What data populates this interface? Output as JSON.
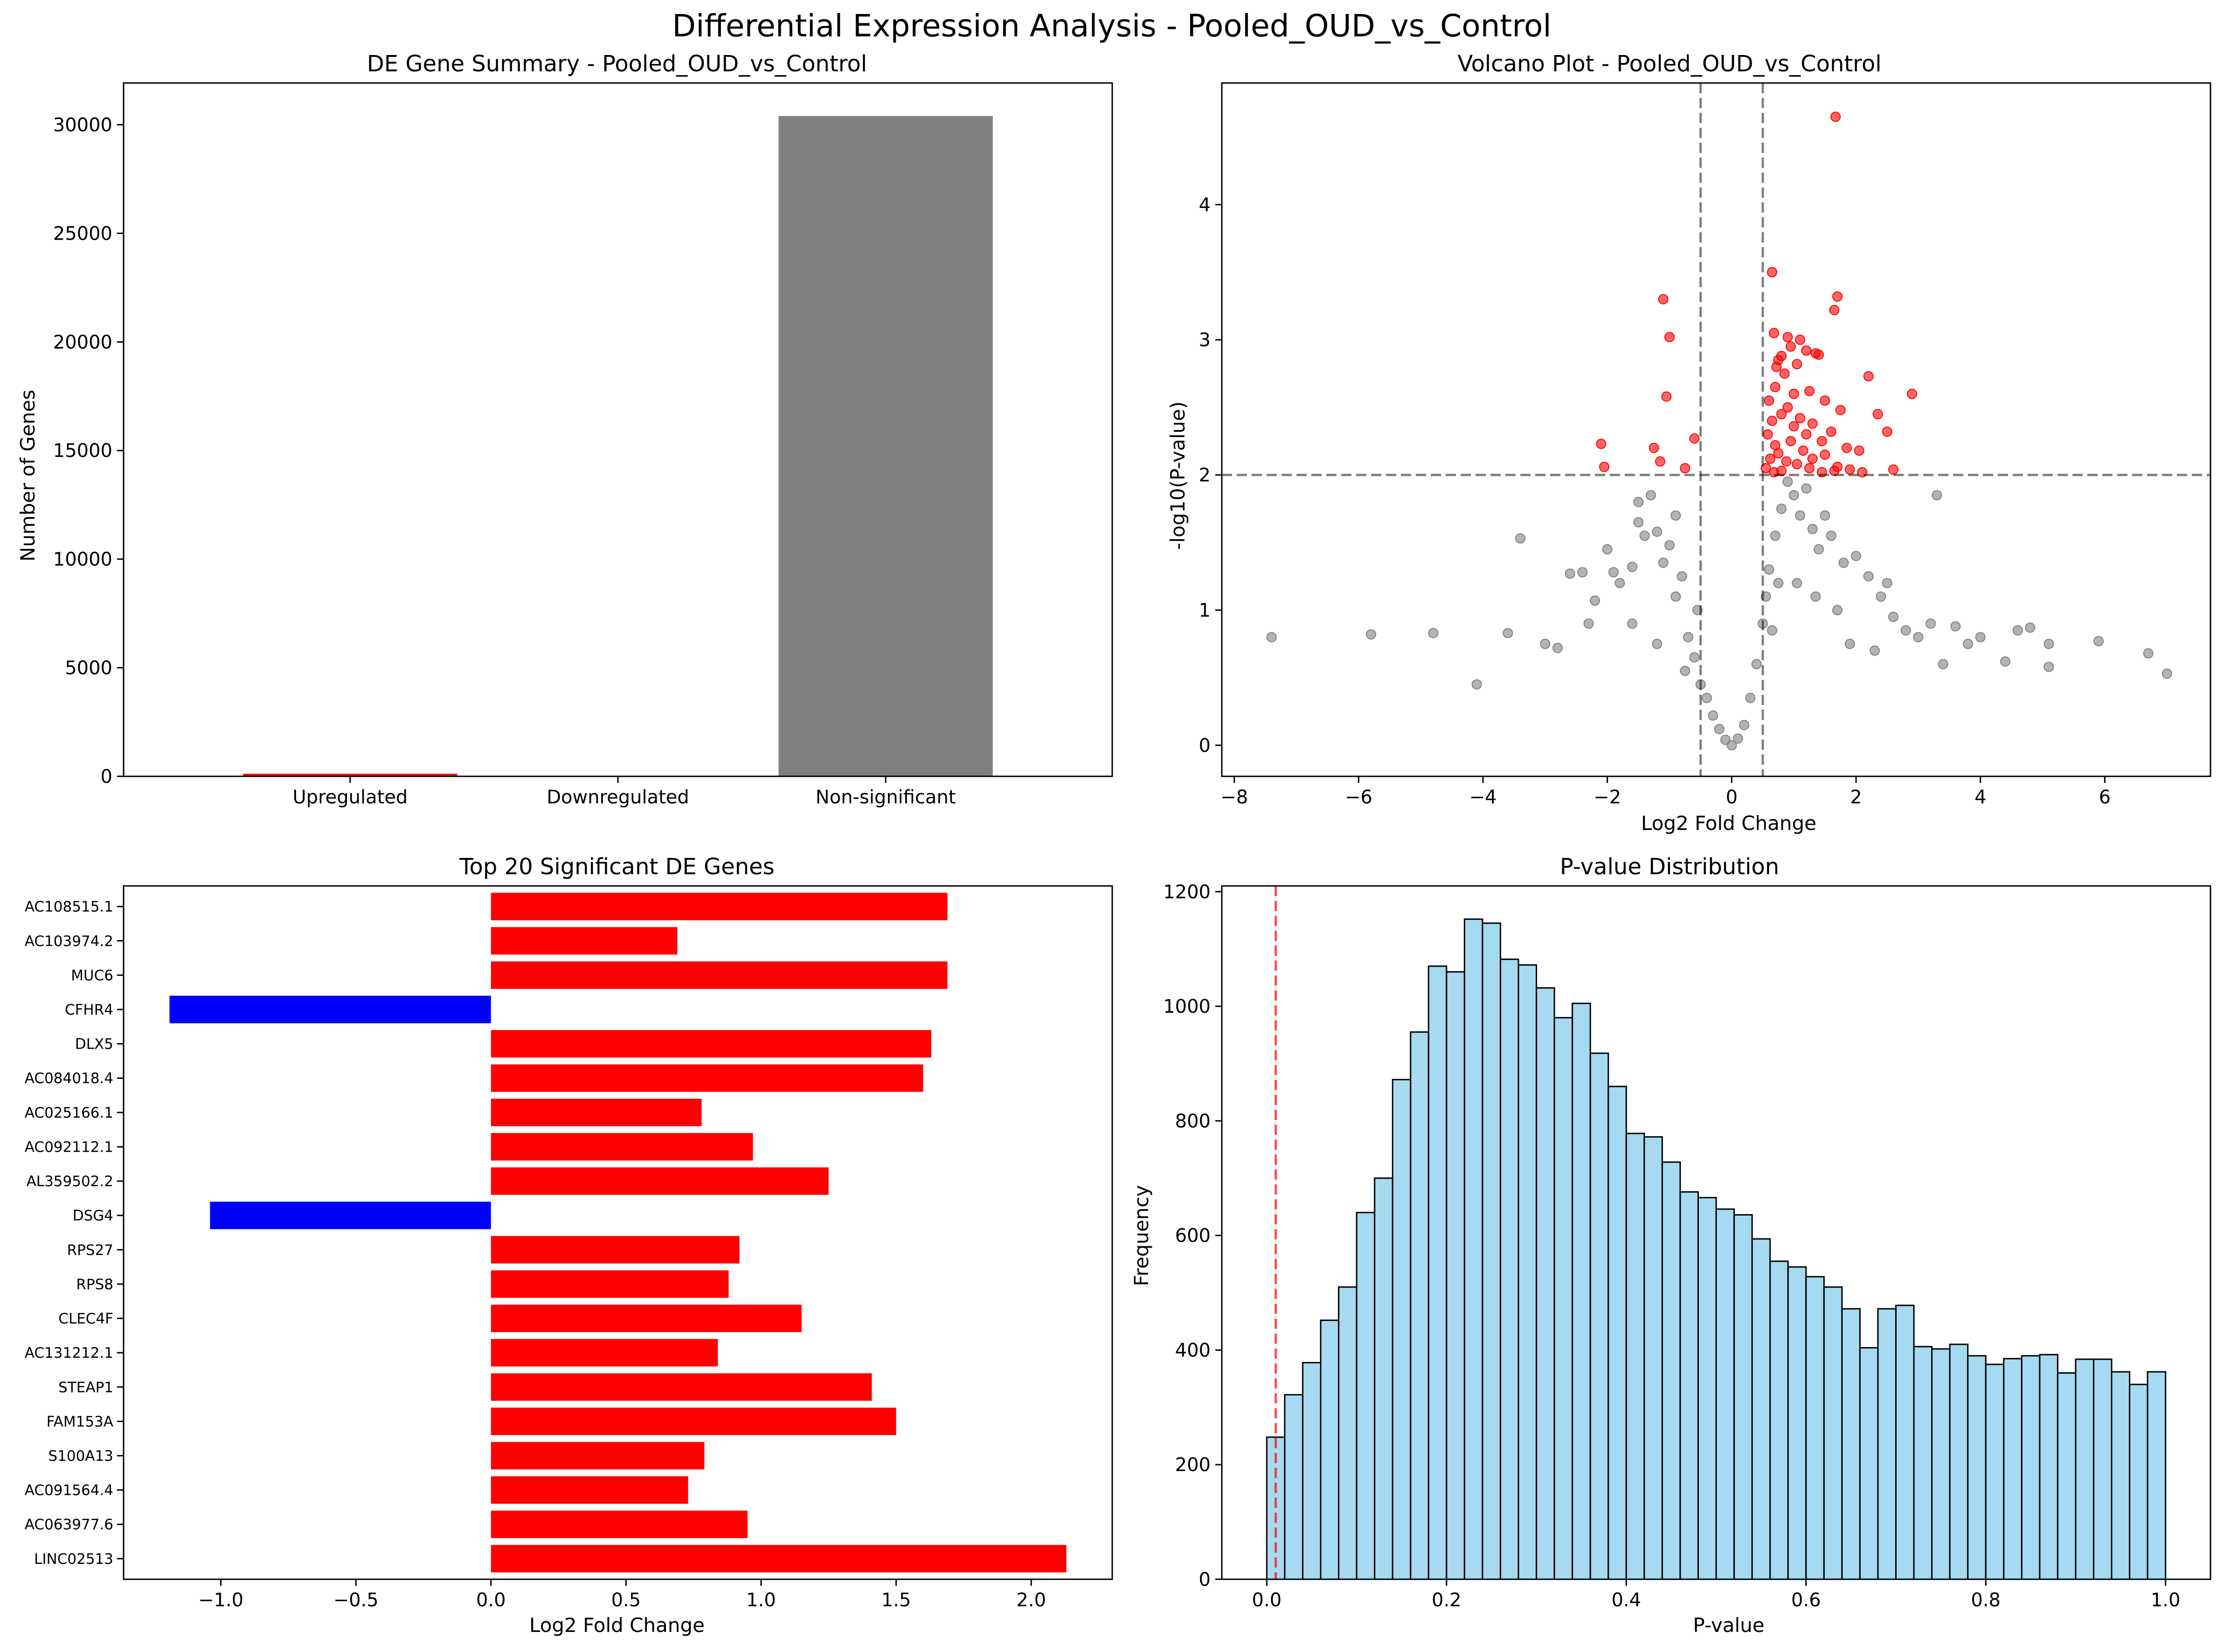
{
  "figure": {
    "title": "Differential Expression Analysis - Pooled_OUD_vs_Control"
  },
  "chart_data": [
    {
      "type": "bar",
      "title": "DE Gene Summary - Pooled_OUD_vs_Control",
      "xlabel": "",
      "ylabel": "Number of Genes",
      "categories": [
        "Upregulated",
        "Downregulated",
        "Non-significant"
      ],
      "values": [
        118,
        6,
        30400
      ],
      "colors": [
        "#ff0000",
        "#0000ff",
        "#808080"
      ],
      "ylim": [
        0,
        31920
      ],
      "yticks": [
        0,
        5000,
        10000,
        15000,
        20000,
        25000,
        30000
      ]
    },
    {
      "type": "scatter",
      "title": "Volcano Plot - Pooled_OUD_vs_Control",
      "xlabel": "Log2 Fold Change",
      "ylabel": "-log10(P-value)",
      "xlim": [
        -8.2,
        7.7
      ],
      "ylim": [
        -0.23,
        4.9
      ],
      "xticks": [
        -8,
        -6,
        -4,
        -2,
        0,
        2,
        4,
        6
      ],
      "yticks": [
        0,
        1,
        2,
        3,
        4
      ],
      "thresholds": {
        "log2fc": [
          -0.5,
          0.5
        ],
        "neg_log10_p": 2
      },
      "colors": {
        "significant": "#ff0000",
        "nonsignificant": "#808080"
      },
      "series": [
        {
          "values": [
            [
              1.67,
              4.65
            ],
            [
              0.65,
              3.5
            ],
            [
              1.7,
              3.32
            ],
            [
              -1.1,
              3.3
            ],
            [
              1.65,
              3.22
            ],
            [
              -1.0,
              3.02
            ],
            [
              0.68,
              3.05
            ],
            [
              0.9,
              3.02
            ],
            [
              1.1,
              3.0
            ],
            [
              0.95,
              2.95
            ],
            [
              1.2,
              2.92
            ],
            [
              1.35,
              2.9
            ],
            [
              0.8,
              2.88
            ],
            [
              1.4,
              2.89
            ],
            [
              0.75,
              2.85
            ],
            [
              0.72,
              2.8
            ],
            [
              1.05,
              2.82
            ],
            [
              2.2,
              2.73
            ],
            [
              0.85,
              2.75
            ],
            [
              0.7,
              2.65
            ],
            [
              1.25,
              2.62
            ],
            [
              2.9,
              2.6
            ],
            [
              -1.05,
              2.58
            ],
            [
              1.0,
              2.6
            ],
            [
              0.6,
              2.55
            ],
            [
              1.5,
              2.55
            ],
            [
              0.9,
              2.5
            ],
            [
              1.75,
              2.48
            ],
            [
              2.35,
              2.45
            ],
            [
              0.8,
              2.45
            ],
            [
              1.1,
              2.42
            ],
            [
              0.65,
              2.4
            ],
            [
              1.3,
              2.38
            ],
            [
              1.0,
              2.36
            ],
            [
              2.5,
              2.32
            ],
            [
              0.58,
              2.3
            ],
            [
              1.6,
              2.32
            ],
            [
              1.2,
              2.3
            ],
            [
              -0.6,
              2.27
            ],
            [
              1.45,
              2.25
            ],
            [
              0.95,
              2.25
            ],
            [
              -2.1,
              2.23
            ],
            [
              0.7,
              2.22
            ],
            [
              1.85,
              2.2
            ],
            [
              -1.25,
              2.2
            ],
            [
              1.15,
              2.18
            ],
            [
              2.05,
              2.18
            ],
            [
              0.75,
              2.16
            ],
            [
              1.5,
              2.15
            ],
            [
              0.62,
              2.12
            ],
            [
              1.3,
              2.12
            ],
            [
              -1.15,
              2.1
            ],
            [
              0.88,
              2.1
            ],
            [
              1.05,
              2.08
            ],
            [
              1.7,
              2.06
            ],
            [
              0.55,
              2.05
            ],
            [
              -2.05,
              2.06
            ],
            [
              -0.75,
              2.05
            ],
            [
              1.9,
              2.04
            ],
            [
              2.6,
              2.04
            ],
            [
              1.25,
              2.05
            ],
            [
              0.8,
              2.03
            ],
            [
              1.45,
              2.02
            ],
            [
              1.65,
              2.03
            ],
            [
              2.1,
              2.02
            ],
            [
              0.68,
              2.02
            ]
          ]
        },
        {
          "values": [
            [
              -7.4,
              0.8
            ],
            [
              -5.8,
              0.82
            ],
            [
              -4.8,
              0.83
            ],
            [
              -4.1,
              0.45
            ],
            [
              -3.6,
              0.83
            ],
            [
              -3.4,
              1.53
            ],
            [
              -3.0,
              0.75
            ],
            [
              -2.8,
              0.72
            ],
            [
              -2.6,
              1.27
            ],
            [
              -2.4,
              1.28
            ],
            [
              -2.2,
              1.07
            ],
            [
              -2.0,
              1.45
            ],
            [
              -1.9,
              1.28
            ],
            [
              -1.8,
              1.2
            ],
            [
              -1.6,
              1.32
            ],
            [
              -1.5,
              1.8
            ],
            [
              -1.4,
              1.55
            ],
            [
              -1.3,
              1.85
            ],
            [
              -1.2,
              1.58
            ],
            [
              -1.1,
              1.35
            ],
            [
              -1.0,
              1.48
            ],
            [
              -0.9,
              1.1
            ],
            [
              -0.8,
              1.25
            ],
            [
              -0.7,
              0.8
            ],
            [
              -0.6,
              0.65
            ],
            [
              -0.5,
              0.45
            ],
            [
              -0.4,
              0.35
            ],
            [
              -0.3,
              0.22
            ],
            [
              -0.2,
              0.12
            ],
            [
              -0.1,
              0.04
            ],
            [
              0.0,
              0.0
            ],
            [
              0.1,
              0.05
            ],
            [
              0.2,
              0.15
            ],
            [
              0.3,
              0.35
            ],
            [
              0.4,
              0.6
            ],
            [
              0.5,
              0.9
            ],
            [
              0.6,
              1.3
            ],
            [
              0.7,
              1.55
            ],
            [
              0.8,
              1.75
            ],
            [
              0.9,
              1.95
            ],
            [
              1.0,
              1.85
            ],
            [
              1.1,
              1.7
            ],
            [
              1.2,
              1.9
            ],
            [
              1.3,
              1.6
            ],
            [
              1.4,
              1.45
            ],
            [
              1.5,
              1.7
            ],
            [
              1.6,
              1.55
            ],
            [
              1.8,
              1.35
            ],
            [
              2.0,
              1.4
            ],
            [
              2.2,
              1.25
            ],
            [
              2.4,
              1.1
            ],
            [
              2.6,
              0.95
            ],
            [
              2.8,
              0.85
            ],
            [
              3.0,
              0.8
            ],
            [
              3.2,
              0.9
            ],
            [
              3.4,
              0.6
            ],
            [
              3.6,
              0.88
            ],
            [
              3.8,
              0.75
            ],
            [
              4.0,
              0.8
            ],
            [
              4.4,
              0.62
            ],
            [
              4.6,
              0.85
            ],
            [
              4.8,
              0.87
            ],
            [
              5.1,
              0.75
            ],
            [
              5.1,
              0.58
            ],
            [
              5.9,
              0.77
            ],
            [
              6.7,
              0.68
            ],
            [
              7.0,
              0.53
            ],
            [
              3.3,
              1.85
            ],
            [
              2.5,
              1.2
            ],
            [
              -1.5,
              1.65
            ],
            [
              -2.3,
              0.9
            ],
            [
              -0.9,
              1.7
            ],
            [
              0.55,
              1.1
            ],
            [
              0.65,
              0.85
            ],
            [
              0.75,
              1.2
            ],
            [
              1.05,
              1.2
            ],
            [
              1.35,
              1.1
            ],
            [
              1.7,
              1.0
            ],
            [
              -0.55,
              1.0
            ],
            [
              -0.75,
              0.55
            ],
            [
              -1.2,
              0.75
            ],
            [
              -1.6,
              0.9
            ],
            [
              1.9,
              0.75
            ],
            [
              2.3,
              0.7
            ]
          ]
        }
      ]
    },
    {
      "type": "bar",
      "orientation": "horizontal",
      "title": "Top 20 Significant DE Genes",
      "xlabel": "Log2 Fold Change",
      "ylabel": "",
      "categories": [
        "AC108515.1",
        "AC103974.2",
        "MUC6",
        "CFHR4",
        "DLX5",
        "AC084018.4",
        "AC025166.1",
        "AC092112.1",
        "AL359502.2",
        "DSG4",
        "RPS27",
        "RPS8",
        "CLEC4F",
        "AC131212.1",
        "STEAP1",
        "FAM153A",
        "S100A13",
        "AC091564.4",
        "AC063977.6",
        "LINC02513"
      ],
      "values": [
        1.69,
        0.69,
        1.69,
        -1.19,
        1.63,
        1.6,
        0.78,
        0.97,
        1.25,
        -1.04,
        0.92,
        0.88,
        1.15,
        0.84,
        1.41,
        1.5,
        0.79,
        0.73,
        0.95,
        2.13
      ],
      "colors": {
        "positive": "#ff0000",
        "negative": "#0000ff"
      },
      "xlim": [
        -1.36,
        2.3
      ],
      "xticks": [
        -1.0,
        -0.5,
        0.0,
        0.5,
        1.0,
        1.5,
        2.0
      ],
      "xtick_labels": [
        "−1.0",
        "−0.5",
        "0.0",
        "0.5",
        "1.0",
        "1.5",
        "2.0"
      ]
    },
    {
      "type": "bar",
      "subtype": "histogram",
      "title": "P-value Distribution",
      "xlabel": "P-value",
      "ylabel": "Frequency",
      "bin_start": 0,
      "bin_width": 0.02,
      "values": [
        248,
        322,
        378,
        452,
        510,
        640,
        700,
        872,
        955,
        1070,
        1060,
        1152,
        1145,
        1082,
        1072,
        1032,
        980,
        1005,
        918,
        860,
        778,
        772,
        728,
        676,
        666,
        646,
        636,
        594,
        555,
        545,
        528,
        510,
        472,
        404,
        472,
        478,
        406,
        402,
        410,
        390,
        375,
        385,
        390,
        392,
        360,
        384,
        384,
        362,
        340,
        362,
        350
      ],
      "threshold": 0.01,
      "colors": {
        "fill": "#87ceeb",
        "edge": "#000000",
        "threshold": "#ff0000"
      },
      "xlim": [
        -0.05,
        1.05
      ],
      "ylim": [
        0,
        1210
      ],
      "xticks": [
        0,
        0.2,
        0.4,
        0.6,
        0.8,
        1.0
      ],
      "yticks": [
        0,
        200,
        400,
        600,
        800,
        1000,
        1200
      ]
    }
  ]
}
